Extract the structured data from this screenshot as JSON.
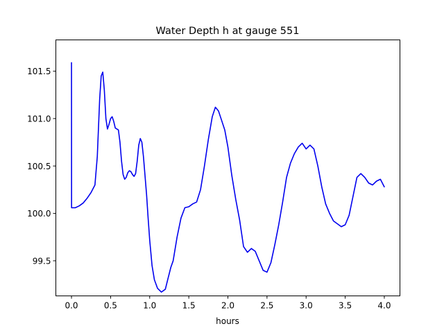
{
  "chart_data": {
    "type": "line",
    "title": "Water Depth h at gauge 551",
    "xlabel": "hours",
    "ylabel": "",
    "xlim": [
      -0.2,
      4.2
    ],
    "ylim": [
      99.13,
      101.83
    ],
    "x_ticks": [
      0.0,
      0.5,
      1.0,
      1.5,
      2.0,
      2.5,
      3.0,
      3.5,
      4.0
    ],
    "x_tick_labels": [
      "0.0",
      "0.5",
      "1.0",
      "1.5",
      "2.0",
      "2.5",
      "3.0",
      "3.5",
      "4.0"
    ],
    "y_ticks": [
      99.5,
      100.0,
      100.5,
      101.0,
      101.5
    ],
    "y_tick_labels": [
      "99.5",
      "100.0",
      "100.5",
      "101.0",
      "101.5"
    ],
    "grid": false,
    "series": [
      {
        "color": "#0000ee",
        "x": [
          0.0,
          0.001,
          0.005,
          0.05,
          0.1,
          0.15,
          0.2,
          0.25,
          0.3,
          0.33,
          0.36,
          0.38,
          0.4,
          0.42,
          0.44,
          0.46,
          0.48,
          0.5,
          0.52,
          0.54,
          0.56,
          0.58,
          0.6,
          0.62,
          0.64,
          0.66,
          0.68,
          0.7,
          0.72,
          0.74,
          0.76,
          0.78,
          0.8,
          0.82,
          0.84,
          0.86,
          0.88,
          0.9,
          0.92,
          0.94,
          0.96,
          0.98,
          1.0,
          1.03,
          1.06,
          1.1,
          1.15,
          1.2,
          1.23,
          1.27,
          1.3,
          1.35,
          1.4,
          1.45,
          1.5,
          1.55,
          1.6,
          1.65,
          1.7,
          1.75,
          1.8,
          1.84,
          1.88,
          1.92,
          1.96,
          2.0,
          2.05,
          2.1,
          2.15,
          2.2,
          2.25,
          2.3,
          2.35,
          2.4,
          2.45,
          2.5,
          2.55,
          2.6,
          2.65,
          2.7,
          2.75,
          2.8,
          2.85,
          2.9,
          2.95,
          3.0,
          3.05,
          3.1,
          3.15,
          3.2,
          3.25,
          3.3,
          3.35,
          3.4,
          3.45,
          3.5,
          3.55,
          3.6,
          3.65,
          3.7,
          3.75,
          3.8,
          3.85,
          3.9,
          3.95,
          4.0
        ],
        "y": [
          101.59,
          100.06,
          100.06,
          100.06,
          100.08,
          100.11,
          100.16,
          100.22,
          100.3,
          100.6,
          101.2,
          101.45,
          101.49,
          101.3,
          101.0,
          100.89,
          100.94,
          101.0,
          101.02,
          100.97,
          100.9,
          100.89,
          100.88,
          100.75,
          100.55,
          100.41,
          100.36,
          100.38,
          100.43,
          100.45,
          100.44,
          100.41,
          100.39,
          100.42,
          100.55,
          100.72,
          100.79,
          100.75,
          100.6,
          100.4,
          100.2,
          99.95,
          99.72,
          99.45,
          99.3,
          99.21,
          99.17,
          99.2,
          99.3,
          99.43,
          99.5,
          99.75,
          99.95,
          100.06,
          100.07,
          100.1,
          100.12,
          100.25,
          100.5,
          100.78,
          101.02,
          101.12,
          101.08,
          100.98,
          100.88,
          100.7,
          100.4,
          100.15,
          99.93,
          99.65,
          99.59,
          99.63,
          99.6,
          99.5,
          99.4,
          99.38,
          99.48,
          99.67,
          99.88,
          100.12,
          100.38,
          100.53,
          100.63,
          100.7,
          100.74,
          100.68,
          100.72,
          100.68,
          100.5,
          100.28,
          100.1,
          100.0,
          99.92,
          99.89,
          99.86,
          99.88,
          99.98,
          100.18,
          100.38,
          100.42,
          100.38,
          100.32,
          100.3,
          100.34,
          100.36,
          100.28
        ]
      }
    ]
  }
}
